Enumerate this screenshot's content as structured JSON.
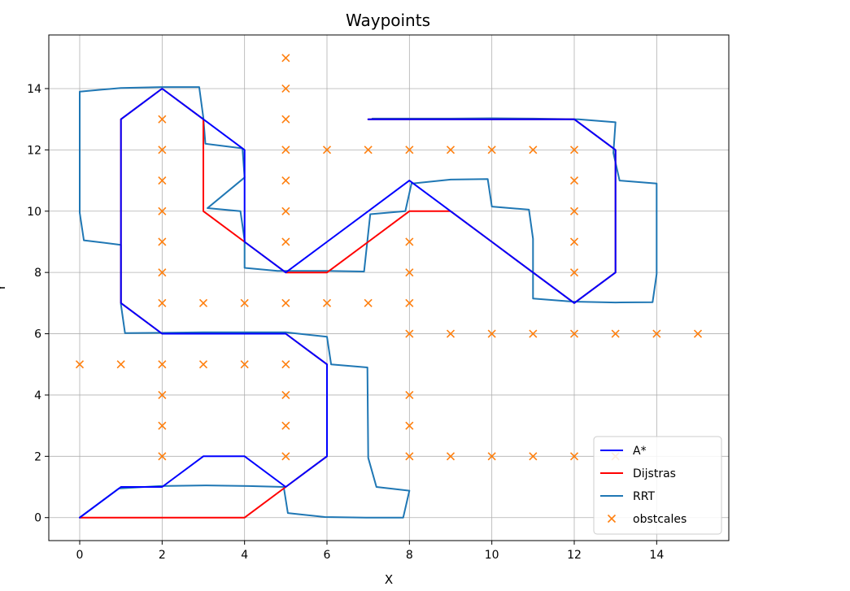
{
  "chart_data": {
    "type": "line",
    "title": "Waypoints",
    "xlabel": "X",
    "ylabel": "Y",
    "xlim": [
      -0.75,
      15.75
    ],
    "ylim": [
      -0.75,
      15.75
    ],
    "xticks": [
      0,
      2,
      4,
      6,
      8,
      10,
      12,
      14
    ],
    "yticks": [
      0,
      2,
      4,
      6,
      8,
      10,
      12,
      14
    ],
    "grid": true,
    "legend_position": "lower-right",
    "series": [
      {
        "name": "A*",
        "kind": "line",
        "color": "#0000ff",
        "points": [
          [
            0,
            0
          ],
          [
            1,
            1
          ],
          [
            2,
            1
          ],
          [
            3,
            2
          ],
          [
            4,
            2
          ],
          [
            5,
            1
          ],
          [
            6,
            2
          ],
          [
            6,
            3
          ],
          [
            6,
            4
          ],
          [
            6,
            5
          ],
          [
            5,
            6
          ],
          [
            4,
            6
          ],
          [
            3,
            6
          ],
          [
            2,
            6
          ],
          [
            1,
            7
          ],
          [
            1,
            8
          ],
          [
            1,
            9
          ],
          [
            1,
            10
          ],
          [
            1,
            11
          ],
          [
            1,
            12
          ],
          [
            1,
            13
          ],
          [
            2,
            14
          ],
          [
            3,
            13
          ],
          [
            4,
            12
          ],
          [
            4,
            11
          ],
          [
            4,
            10
          ],
          [
            4,
            9
          ],
          [
            5,
            8
          ],
          [
            6,
            9
          ],
          [
            7,
            10
          ],
          [
            8,
            11
          ],
          [
            9,
            10
          ],
          [
            10,
            9
          ],
          [
            11,
            8
          ],
          [
            12,
            7
          ],
          [
            13,
            8
          ],
          [
            13,
            9
          ],
          [
            13,
            10
          ],
          [
            13,
            11
          ],
          [
            13,
            12
          ],
          [
            12,
            13
          ],
          [
            11,
            13
          ],
          [
            10,
            13
          ],
          [
            9,
            13
          ],
          [
            8,
            13
          ],
          [
            7,
            13
          ]
        ]
      },
      {
        "name": "Dijstras",
        "kind": "line",
        "color": "#ff0000",
        "points": [
          [
            0,
            0
          ],
          [
            1,
            0
          ],
          [
            2,
            0
          ],
          [
            3,
            0
          ],
          [
            4,
            0
          ],
          [
            5,
            1
          ],
          [
            6,
            2
          ],
          [
            6,
            3
          ],
          [
            6,
            4
          ],
          [
            6,
            5
          ],
          [
            5,
            6
          ],
          [
            4,
            6
          ],
          [
            3,
            6
          ],
          [
            2,
            6
          ],
          [
            1,
            7
          ],
          [
            1,
            8
          ],
          [
            1,
            9
          ],
          [
            1,
            10
          ],
          [
            1,
            11
          ],
          [
            1,
            12
          ],
          [
            1,
            13
          ],
          [
            2,
            14
          ],
          [
            3,
            13
          ],
          [
            3,
            12
          ],
          [
            3,
            11
          ],
          [
            3,
            10
          ],
          [
            4,
            9
          ],
          [
            5,
            8
          ],
          [
            6,
            8
          ],
          [
            7,
            9
          ],
          [
            8,
            10
          ],
          [
            9,
            10
          ],
          [
            10,
            9
          ],
          [
            11,
            8
          ],
          [
            12,
            7
          ],
          [
            13,
            8
          ],
          [
            13,
            9
          ],
          [
            13,
            10
          ],
          [
            13,
            11
          ],
          [
            13,
            12
          ],
          [
            12,
            13
          ],
          [
            11,
            13
          ],
          [
            10,
            13
          ],
          [
            9,
            13
          ],
          [
            8,
            13
          ],
          [
            7,
            13
          ]
        ]
      },
      {
        "name": "RRT",
        "kind": "line",
        "color": "#1f77b4",
        "points": [
          [
            0,
            0
          ],
          [
            0.95,
            0.95
          ],
          [
            1.95,
            1.03
          ],
          [
            3.05,
            1.05
          ],
          [
            4.1,
            1.03
          ],
          [
            4.95,
            1.0
          ],
          [
            5.05,
            0.15
          ],
          [
            5.95,
            0.02
          ],
          [
            6.95,
            0.0
          ],
          [
            7.85,
            0.0
          ],
          [
            8.0,
            0.88
          ],
          [
            7.2,
            1.0
          ],
          [
            7.0,
            1.95
          ],
          [
            6.98,
            4.9
          ],
          [
            6.1,
            5.0
          ],
          [
            6.0,
            5.9
          ],
          [
            5.0,
            6.05
          ],
          [
            3.9,
            6.05
          ],
          [
            3.0,
            6.05
          ],
          [
            2.0,
            6.03
          ],
          [
            1.1,
            6.02
          ],
          [
            1.0,
            6.95
          ],
          [
            1.0,
            8.0
          ],
          [
            1.0,
            8.9
          ],
          [
            0.1,
            9.05
          ],
          [
            0.0,
            9.95
          ],
          [
            0.0,
            11.9
          ],
          [
            0.0,
            13.9
          ],
          [
            1.0,
            14.02
          ],
          [
            2.0,
            14.05
          ],
          [
            2.9,
            14.05
          ],
          [
            3.0,
            13.05
          ],
          [
            3.05,
            12.2
          ],
          [
            3.95,
            12.05
          ],
          [
            4.0,
            11.1
          ],
          [
            3.1,
            10.1
          ],
          [
            3.9,
            10.0
          ],
          [
            4.0,
            9.05
          ],
          [
            4.0,
            8.15
          ],
          [
            4.8,
            8.05
          ],
          [
            6.0,
            8.05
          ],
          [
            6.9,
            8.03
          ],
          [
            7.05,
            9.9
          ],
          [
            7.9,
            10.0
          ],
          [
            8.05,
            10.9
          ],
          [
            9.0,
            11.03
          ],
          [
            9.9,
            11.05
          ],
          [
            10.0,
            10.15
          ],
          [
            10.9,
            10.05
          ],
          [
            11.0,
            9.1
          ],
          [
            11.0,
            8.1
          ],
          [
            11.0,
            7.15
          ],
          [
            11.95,
            7.05
          ],
          [
            13.0,
            7.02
          ],
          [
            13.9,
            7.03
          ],
          [
            14.0,
            7.95
          ],
          [
            14.0,
            10.9
          ],
          [
            13.1,
            11.0
          ],
          [
            12.95,
            11.9
          ],
          [
            13.0,
            12.9
          ],
          [
            12.1,
            13.0
          ],
          [
            11.0,
            13.02
          ],
          [
            10.0,
            13.03
          ],
          [
            9.0,
            13.02
          ],
          [
            8.0,
            13.02
          ],
          [
            7.1,
            13.02
          ]
        ]
      },
      {
        "name": "obstcales",
        "kind": "scatter",
        "marker": "x",
        "color": "#ff7f0e",
        "points": [
          [
            5,
            15
          ],
          [
            5,
            14
          ],
          [
            2,
            13
          ],
          [
            5,
            13
          ],
          [
            2,
            12
          ],
          [
            5,
            12
          ],
          [
            6,
            12
          ],
          [
            7,
            12
          ],
          [
            8,
            12
          ],
          [
            9,
            12
          ],
          [
            10,
            12
          ],
          [
            11,
            12
          ],
          [
            12,
            12
          ],
          [
            2,
            11
          ],
          [
            5,
            11
          ],
          [
            12,
            11
          ],
          [
            2,
            10
          ],
          [
            5,
            10
          ],
          [
            12,
            10
          ],
          [
            2,
            9
          ],
          [
            5,
            9
          ],
          [
            8,
            9
          ],
          [
            12,
            9
          ],
          [
            2,
            8
          ],
          [
            8,
            8
          ],
          [
            12,
            8
          ],
          [
            2,
            7
          ],
          [
            3,
            7
          ],
          [
            4,
            7
          ],
          [
            5,
            7
          ],
          [
            6,
            7
          ],
          [
            7,
            7
          ],
          [
            8,
            7
          ],
          [
            8,
            6
          ],
          [
            9,
            6
          ],
          [
            10,
            6
          ],
          [
            11,
            6
          ],
          [
            12,
            6
          ],
          [
            13,
            6
          ],
          [
            14,
            6
          ],
          [
            15,
            6
          ],
          [
            0,
            5
          ],
          [
            1,
            5
          ],
          [
            2,
            5
          ],
          [
            3,
            5
          ],
          [
            4,
            5
          ],
          [
            5,
            5
          ],
          [
            2,
            4
          ],
          [
            5,
            4
          ],
          [
            8,
            4
          ],
          [
            2,
            3
          ],
          [
            5,
            3
          ],
          [
            8,
            3
          ],
          [
            2,
            2
          ],
          [
            5,
            2
          ],
          [
            8,
            2
          ],
          [
            9,
            2
          ],
          [
            10,
            2
          ],
          [
            11,
            2
          ],
          [
            12,
            2
          ],
          [
            13,
            2
          ]
        ]
      }
    ]
  }
}
